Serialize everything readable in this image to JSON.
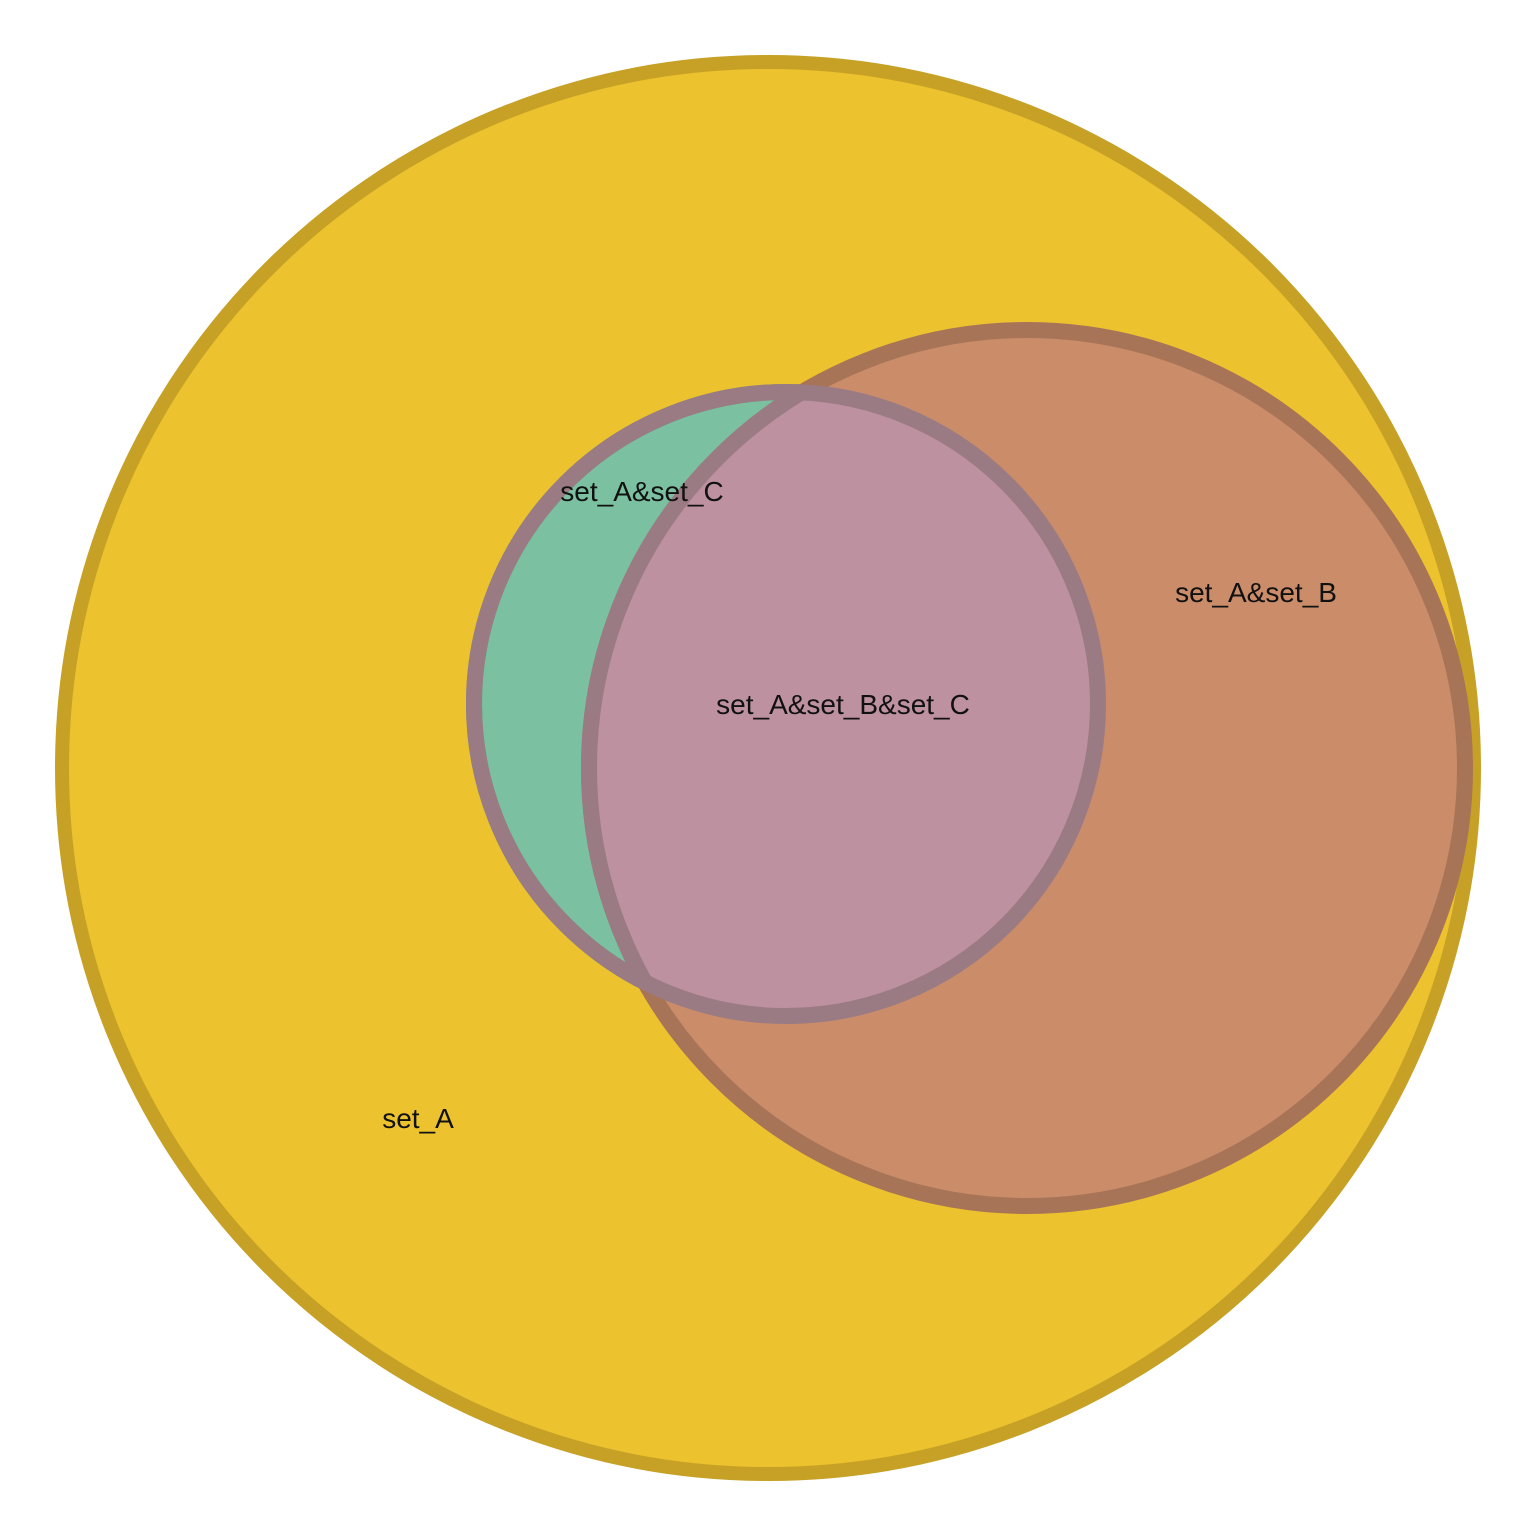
{
  "sets": [
    {
      "id": "set_A",
      "fill": "#ECC22F",
      "stroke": "#C6A126"
    },
    {
      "id": "set_C",
      "fill": "#7BC0A0",
      "stroke": "#65987F"
    },
    {
      "id": "set_B",
      "fill": "#CA8C69",
      "stroke": "#A77457"
    }
  ],
  "overlap_fill": "#BE91A0",
  "overlap_stroke": "#9A7B84",
  "labels": {
    "set_a": "set_A",
    "set_a_c": "set_A&set_C",
    "set_a_b": "set_A&set_B",
    "set_a_b_c": "set_A&set_B&set_C"
  }
}
